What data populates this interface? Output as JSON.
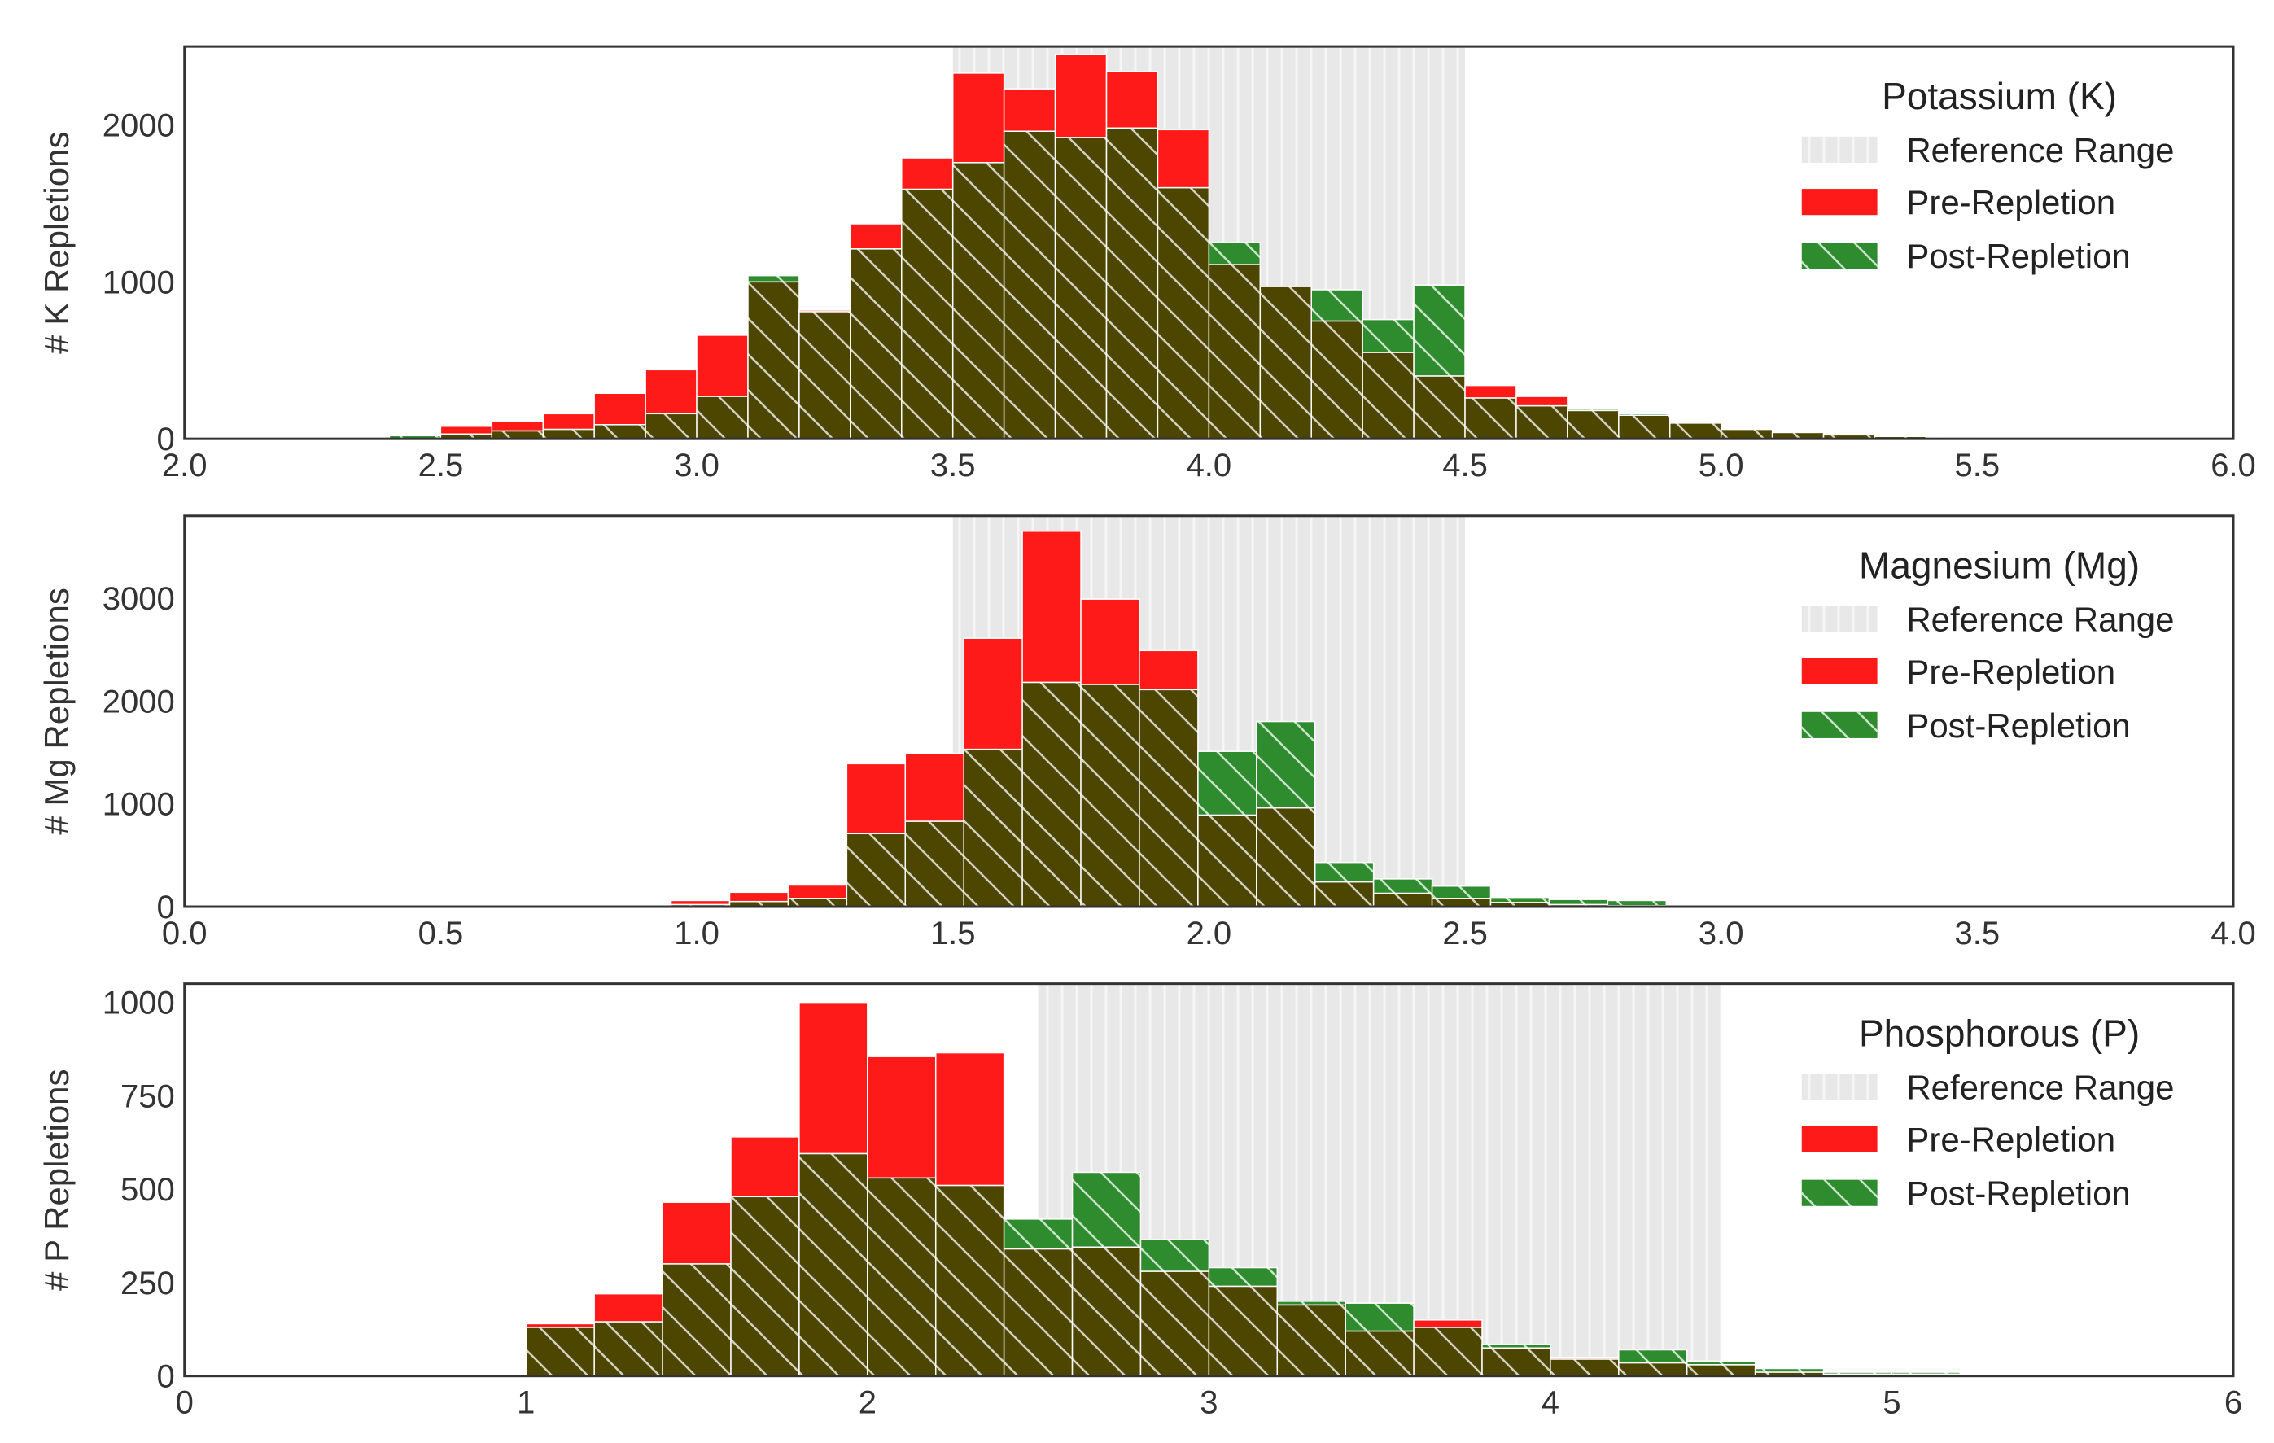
{
  "colors": {
    "pre": "#ff1a1a",
    "post": "#2e8b2e",
    "overlap": "#4d4600",
    "reference": "#e6e6e6",
    "hatch": "#ffffff"
  },
  "chart_data": [
    {
      "type": "bar",
      "title": "Potassium (K)",
      "ylabel": "# K Repletions",
      "xlim": [
        2.0,
        6.0
      ],
      "ylim": [
        0,
        2500
      ],
      "xticks": [
        "2.0",
        "2.5",
        "3.0",
        "3.5",
        "4.0",
        "4.5",
        "5.0",
        "5.5",
        "6.0"
      ],
      "xtick_values": [
        2.0,
        2.5,
        3.0,
        3.5,
        4.0,
        4.5,
        5.0,
        5.5,
        6.0
      ],
      "yticks": [
        "0",
        "1000",
        "2000"
      ],
      "ytick_values": [
        0,
        1000,
        2000
      ],
      "reference_range": [
        3.5,
        4.5
      ],
      "legend": [
        "Reference Range",
        "Pre-Repletion",
        "Post-Repletion"
      ],
      "bin_start": 2.4,
      "bin_width": 0.1,
      "series": [
        {
          "name": "Pre-Repletion",
          "values": [
            0,
            80,
            110,
            160,
            290,
            440,
            660,
            1000,
            820,
            1370,
            1790,
            2330,
            2230,
            2450,
            2340,
            1970,
            1110,
            970,
            750,
            550,
            400,
            340,
            270,
            180,
            150,
            100,
            60,
            40,
            25,
            15,
            10
          ]
        },
        {
          "name": "Post-Repletion",
          "values": [
            20,
            30,
            50,
            60,
            90,
            160,
            270,
            1040,
            810,
            1210,
            1590,
            1760,
            1960,
            1920,
            1980,
            1600,
            1250,
            970,
            950,
            760,
            980,
            260,
            210,
            190,
            160,
            110,
            60,
            40,
            30,
            20,
            15
          ]
        }
      ]
    },
    {
      "type": "bar",
      "title": "Magnesium (Mg)",
      "ylabel": "# Mg Repletions",
      "xlim": [
        0.0,
        4.0
      ],
      "ylim": [
        0,
        3800
      ],
      "xticks": [
        "0.0",
        "0.5",
        "1.0",
        "1.5",
        "2.0",
        "2.5",
        "3.0",
        "3.5",
        "4.0"
      ],
      "xtick_values": [
        0.0,
        0.5,
        1.0,
        1.5,
        2.0,
        2.5,
        3.0,
        3.5,
        4.0
      ],
      "yticks": [
        "0",
        "1000",
        "2000",
        "3000"
      ],
      "ytick_values": [
        0,
        1000,
        2000,
        3000
      ],
      "reference_range": [
        1.5,
        2.5
      ],
      "legend": [
        "Reference Range",
        "Pre-Repletion",
        "Post-Repletion"
      ],
      "bin_start": 0.95,
      "bin_width": 0.1142857,
      "series": [
        {
          "name": "Pre-Repletion",
          "values": [
            60,
            140,
            210,
            1390,
            1490,
            2610,
            3650,
            2990,
            2490,
            890,
            960,
            240,
            130,
            80,
            40,
            20,
            10
          ]
        },
        {
          "name": "Post-Repletion",
          "values": [
            20,
            50,
            80,
            710,
            830,
            1530,
            2180,
            2160,
            2110,
            1510,
            1800,
            430,
            270,
            200,
            90,
            70,
            60
          ]
        }
      ]
    },
    {
      "type": "bar",
      "title": "Phosphorous (P)",
      "ylabel": "# P Repletions",
      "xlim": [
        0,
        6
      ],
      "ylim": [
        0,
        1050
      ],
      "xticks": [
        "0",
        "1",
        "2",
        "3",
        "4",
        "5",
        "6"
      ],
      "xtick_values": [
        0,
        1,
        2,
        3,
        4,
        5,
        6
      ],
      "yticks": [
        "0",
        "250",
        "500",
        "750",
        "1000"
      ],
      "ytick_values": [
        0,
        250,
        500,
        750,
        1000
      ],
      "reference_range": [
        2.5,
        4.5
      ],
      "legend": [
        "Reference Range",
        "Pre-Repletion",
        "Post-Repletion"
      ],
      "bin_start": 1.0,
      "bin_width": 0.2,
      "series": [
        {
          "name": "Pre-Repletion",
          "values": [
            140,
            220,
            465,
            640,
            1000,
            855,
            865,
            340,
            345,
            280,
            240,
            190,
            120,
            150,
            75,
            50,
            35,
            30,
            10,
            5,
            5
          ]
        },
        {
          "name": "Post-Repletion",
          "values": [
            130,
            145,
            300,
            480,
            595,
            530,
            510,
            420,
            545,
            365,
            290,
            200,
            195,
            130,
            85,
            45,
            70,
            40,
            20,
            10,
            10
          ]
        }
      ]
    }
  ]
}
